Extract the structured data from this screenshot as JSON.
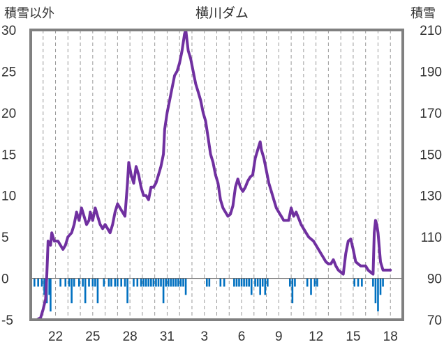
{
  "chart_data": {
    "type": "line",
    "title": "横川ダム",
    "left_axis_label": "積雪以外",
    "right_axis_label": "積雪",
    "left_axis": {
      "min": -5,
      "max": 30,
      "ticks": [
        -5,
        0,
        5,
        10,
        15,
        20,
        25,
        30
      ]
    },
    "right_axis": {
      "min": 70,
      "max": 210,
      "ticks": [
        70,
        90,
        110,
        130,
        150,
        170,
        190,
        210
      ]
    },
    "x_axis": {
      "min": 20,
      "max": 50,
      "tick_labels": [
        {
          "x": 22,
          "label": "22"
        },
        {
          "x": 25,
          "label": "25"
        },
        {
          "x": 28,
          "label": "28"
        },
        {
          "x": 31,
          "label": "31"
        },
        {
          "x": 34,
          "label": "3"
        },
        {
          "x": 37,
          "label": "6"
        },
        {
          "x": 40,
          "label": "9"
        },
        {
          "x": 43,
          "label": "12"
        },
        {
          "x": 46,
          "label": "15"
        },
        {
          "x": 49,
          "label": "18"
        }
      ]
    },
    "grid": {
      "vertical": "dashed"
    },
    "colors": {
      "snow_line": "#7030a0",
      "bars": "#0070c0",
      "frame": "#808080"
    },
    "series": [
      {
        "axis": "right",
        "style": "line",
        "points": [
          [
            20.1,
            70
          ],
          [
            20.5,
            70
          ],
          [
            20.8,
            71
          ],
          [
            21.0,
            75
          ],
          [
            21.2,
            80
          ],
          [
            21.3,
            92
          ],
          [
            21.4,
            108
          ],
          [
            21.6,
            106
          ],
          [
            21.7,
            112
          ],
          [
            21.9,
            108
          ],
          [
            22.2,
            108
          ],
          [
            22.4,
            106
          ],
          [
            22.6,
            104
          ],
          [
            22.8,
            106
          ],
          [
            23.0,
            110
          ],
          [
            23.3,
            112
          ],
          [
            23.5,
            116
          ],
          [
            23.7,
            122
          ],
          [
            23.9,
            118
          ],
          [
            24.1,
            124
          ],
          [
            24.3,
            120
          ],
          [
            24.5,
            116
          ],
          [
            24.7,
            118
          ],
          [
            24.8,
            122
          ],
          [
            25.0,
            118
          ],
          [
            25.2,
            124
          ],
          [
            25.4,
            120
          ],
          [
            25.6,
            116
          ],
          [
            25.8,
            114
          ],
          [
            26.0,
            116
          ],
          [
            26.2,
            114
          ],
          [
            26.4,
            112
          ],
          [
            26.6,
            116
          ],
          [
            26.8,
            122
          ],
          [
            27.0,
            126
          ],
          [
            27.2,
            124
          ],
          [
            27.4,
            122
          ],
          [
            27.6,
            120
          ],
          [
            27.8,
            136
          ],
          [
            27.9,
            146
          ],
          [
            28.1,
            140
          ],
          [
            28.3,
            136
          ],
          [
            28.5,
            144
          ],
          [
            28.7,
            140
          ],
          [
            28.9,
            134
          ],
          [
            29.1,
            130
          ],
          [
            29.3,
            130
          ],
          [
            29.5,
            128
          ],
          [
            29.7,
            134
          ],
          [
            29.9,
            134
          ],
          [
            30.1,
            136
          ],
          [
            30.3,
            140
          ],
          [
            30.5,
            144
          ],
          [
            30.7,
            150
          ],
          [
            30.8,
            162
          ],
          [
            31.0,
            170
          ],
          [
            31.2,
            176
          ],
          [
            31.4,
            182
          ],
          [
            31.6,
            188
          ],
          [
            31.8,
            190
          ],
          [
            32.0,
            194
          ],
          [
            32.2,
            200
          ],
          [
            32.4,
            208
          ],
          [
            32.5,
            210
          ],
          [
            32.7,
            200
          ],
          [
            32.9,
            196
          ],
          [
            33.1,
            190
          ],
          [
            33.3,
            184
          ],
          [
            33.5,
            180
          ],
          [
            33.7,
            176
          ],
          [
            33.9,
            170
          ],
          [
            34.1,
            166
          ],
          [
            34.3,
            158
          ],
          [
            34.5,
            150
          ],
          [
            34.7,
            146
          ],
          [
            34.9,
            140
          ],
          [
            35.1,
            136
          ],
          [
            35.3,
            128
          ],
          [
            35.5,
            124
          ],
          [
            35.7,
            122
          ],
          [
            35.9,
            120
          ],
          [
            36.1,
            121
          ],
          [
            36.3,
            125
          ],
          [
            36.5,
            134
          ],
          [
            36.7,
            138
          ],
          [
            36.9,
            134
          ],
          [
            37.1,
            132
          ],
          [
            37.3,
            134
          ],
          [
            37.5,
            137
          ],
          [
            37.7,
            139
          ],
          [
            37.9,
            140
          ],
          [
            38.1,
            148
          ],
          [
            38.3,
            152
          ],
          [
            38.5,
            156
          ],
          [
            38.6,
            152
          ],
          [
            38.8,
            148
          ],
          [
            39.0,
            142
          ],
          [
            39.2,
            136
          ],
          [
            39.4,
            132
          ],
          [
            39.6,
            128
          ],
          [
            39.8,
            124
          ],
          [
            40.0,
            122
          ],
          [
            40.2,
            120
          ],
          [
            40.4,
            118
          ],
          [
            40.6,
            118
          ],
          [
            40.8,
            118
          ],
          [
            41.0,
            124
          ],
          [
            41.2,
            120
          ],
          [
            41.4,
            122
          ],
          [
            41.6,
            119
          ],
          [
            41.8,
            116
          ],
          [
            42.0,
            114
          ],
          [
            42.2,
            112
          ],
          [
            42.4,
            110
          ],
          [
            42.6,
            109
          ],
          [
            42.8,
            108
          ],
          [
            43.0,
            106
          ],
          [
            43.2,
            104
          ],
          [
            43.4,
            102
          ],
          [
            43.6,
            100
          ],
          [
            43.8,
            98
          ],
          [
            44.0,
            97
          ],
          [
            44.2,
            97
          ],
          [
            44.4,
            99
          ],
          [
            44.6,
            96
          ],
          [
            44.8,
            94
          ],
          [
            45.0,
            93
          ],
          [
            45.2,
            92
          ],
          [
            45.4,
            102
          ],
          [
            45.6,
            108
          ],
          [
            45.8,
            109
          ],
          [
            46.0,
            104
          ],
          [
            46.2,
            98
          ],
          [
            46.4,
            97
          ],
          [
            46.6,
            96
          ],
          [
            46.8,
            96
          ],
          [
            47.0,
            96
          ],
          [
            47.2,
            94
          ],
          [
            47.4,
            93
          ],
          [
            47.6,
            92
          ],
          [
            47.7,
            112
          ],
          [
            47.8,
            118
          ],
          [
            47.9,
            116
          ],
          [
            48.0,
            112
          ],
          [
            48.2,
            98
          ],
          [
            48.4,
            94
          ],
          [
            48.6,
            94
          ],
          [
            48.8,
            94
          ],
          [
            49.0,
            94
          ]
        ]
      },
      {
        "axis": "left",
        "style": "bar",
        "bars": [
          [
            20.3,
            -1
          ],
          [
            20.6,
            -1
          ],
          [
            20.9,
            -1
          ],
          [
            21.1,
            -2
          ],
          [
            21.3,
            -3
          ],
          [
            21.5,
            -2
          ],
          [
            21.6,
            -4
          ],
          [
            22.4,
            -1
          ],
          [
            22.8,
            -1
          ],
          [
            23.1,
            -1
          ],
          [
            23.3,
            -3
          ],
          [
            23.5,
            -1
          ],
          [
            23.9,
            -1
          ],
          [
            24.2,
            -1
          ],
          [
            24.4,
            -3
          ],
          [
            24.7,
            -1
          ],
          [
            25.0,
            -1
          ],
          [
            25.2,
            -1
          ],
          [
            25.4,
            -3
          ],
          [
            25.9,
            -1
          ],
          [
            26.3,
            -1
          ],
          [
            26.5,
            -1
          ],
          [
            26.8,
            -1
          ],
          [
            27.0,
            -1
          ],
          [
            27.3,
            -1
          ],
          [
            27.6,
            -1
          ],
          [
            27.8,
            -3
          ],
          [
            28.3,
            -1
          ],
          [
            28.6,
            -1
          ],
          [
            28.9,
            -1
          ],
          [
            29.1,
            -1
          ],
          [
            29.3,
            -1
          ],
          [
            29.5,
            -1
          ],
          [
            29.7,
            -1
          ],
          [
            29.9,
            -1
          ],
          [
            30.1,
            -1
          ],
          [
            30.3,
            -1
          ],
          [
            30.5,
            -1
          ],
          [
            30.7,
            -3
          ],
          [
            30.9,
            -1
          ],
          [
            31.1,
            -1
          ],
          [
            31.3,
            -1
          ],
          [
            31.5,
            -1
          ],
          [
            31.7,
            -1
          ],
          [
            31.9,
            -1
          ],
          [
            32.1,
            -1
          ],
          [
            32.3,
            -1
          ],
          [
            32.5,
            -2
          ],
          [
            34.2,
            -1
          ],
          [
            34.4,
            -1
          ],
          [
            35.3,
            -1
          ],
          [
            35.6,
            -1
          ],
          [
            36.4,
            -1
          ],
          [
            36.6,
            -1
          ],
          [
            36.8,
            -1
          ],
          [
            37.0,
            -1
          ],
          [
            37.2,
            -1
          ],
          [
            37.4,
            -1
          ],
          [
            37.6,
            -1
          ],
          [
            37.8,
            -2
          ],
          [
            38.1,
            -1
          ],
          [
            38.3,
            -1
          ],
          [
            38.5,
            -2
          ],
          [
            38.7,
            -1
          ],
          [
            38.9,
            -2
          ],
          [
            39.1,
            -1
          ],
          [
            40.9,
            -1
          ],
          [
            41.1,
            -3
          ],
          [
            41.3,
            -1
          ],
          [
            42.3,
            -1
          ],
          [
            42.6,
            -2
          ],
          [
            42.9,
            -1
          ],
          [
            43.1,
            -1
          ],
          [
            46.1,
            -1
          ],
          [
            46.4,
            -1
          ],
          [
            46.7,
            -1
          ],
          [
            47.6,
            -1
          ],
          [
            47.8,
            -3
          ],
          [
            48.0,
            -4
          ],
          [
            48.2,
            -2
          ],
          [
            48.4,
            -1
          ]
        ]
      }
    ]
  }
}
